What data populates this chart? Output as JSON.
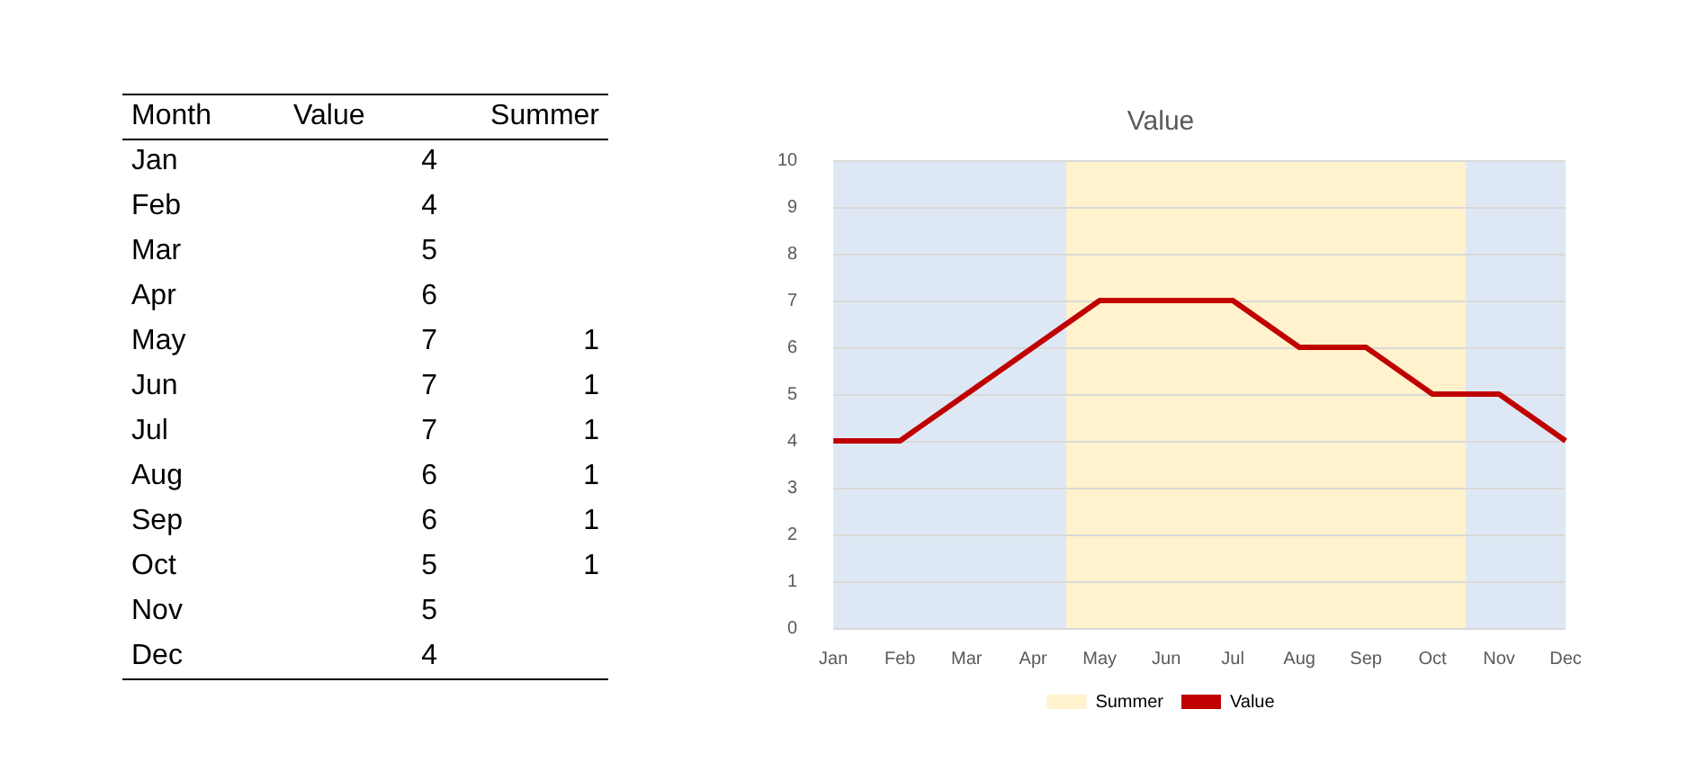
{
  "chart_data": [
    {
      "type": "other",
      "annotations": [
        "Month"
      ],
      "categories": [
        "Jan",
        "Feb",
        "Mar",
        "Apr",
        "May",
        "Jun",
        "Jul",
        "Aug",
        "Sep",
        "Oct",
        "Nov",
        "Dec"
      ],
      "series": [
        {
          "name": "Value",
          "values": [
            4,
            4,
            5,
            6,
            7,
            7,
            7,
            6,
            6,
            5,
            5,
            4
          ]
        },
        {
          "name": "Summer",
          "values": [
            null,
            null,
            null,
            null,
            1,
            1,
            1,
            1,
            1,
            1,
            null,
            null
          ]
        }
      ],
      "data_labels": true
    },
    {
      "type": "line",
      "title": "Value",
      "categories": [
        "Jan",
        "Feb",
        "Mar",
        "Apr",
        "May",
        "Jun",
        "Jul",
        "Aug",
        "Sep",
        "Oct",
        "Nov",
        "Dec"
      ],
      "series": [
        {
          "name": "Value",
          "color": "#c00000",
          "values": [
            4,
            4,
            5,
            6,
            7,
            7,
            7,
            6,
            6,
            5,
            5,
            4
          ]
        }
      ],
      "ylim": [
        0,
        10
      ],
      "yticks": [
        0,
        1,
        2,
        3,
        4,
        5,
        6,
        7,
        8,
        9,
        10
      ],
      "grid": "y",
      "legend": "bottom",
      "marker": "none",
      "line_style": "solid",
      "bands": [
        {
          "axis": "x",
          "from": "May",
          "to": "Oct",
          "label": "Summer",
          "color": "#fff2cc"
        }
      ]
    }
  ]
}
